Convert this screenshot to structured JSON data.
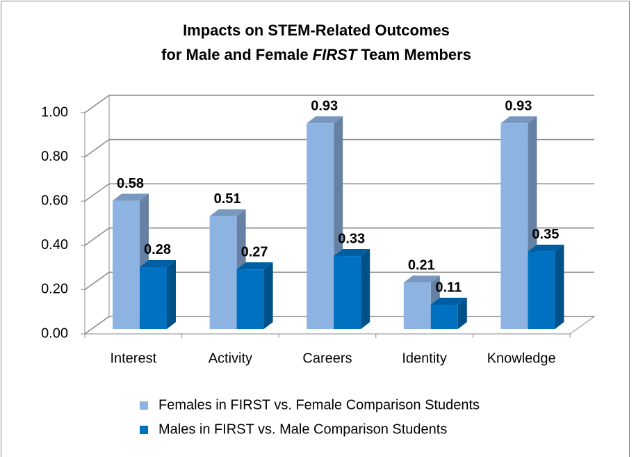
{
  "chart_data": {
    "type": "bar3d",
    "title": [
      "Impacts on STEM-Related Outcomes",
      "for Male and Female ",
      "FIRST",
      " Team Members"
    ],
    "categories": [
      "Interest",
      "Activity",
      "Careers",
      "Identity",
      "Knowledge"
    ],
    "series": [
      {
        "name": "Females in FIRST vs. Female Comparison Students",
        "color": "#8db3e2",
        "values": [
          0.58,
          0.51,
          0.93,
          0.21,
          0.93
        ]
      },
      {
        "name": "Males in FIRST vs. Male Comparison Students",
        "color": "#0070c0",
        "values": [
          0.28,
          0.27,
          0.33,
          0.11,
          0.35
        ]
      }
    ],
    "ylim": [
      0,
      1
    ],
    "yticks": [
      {
        "value": 0,
        "label": "0.00"
      },
      {
        "value": 0.2,
        "label": "0.20"
      },
      {
        "value": 0.4,
        "label": "0.40"
      },
      {
        "value": 0.6,
        "label": "0.60"
      },
      {
        "value": 0.8,
        "label": "0.80"
      },
      {
        "value": 1,
        "label": "1.00"
      }
    ],
    "grid": true,
    "legend": "bottom"
  }
}
